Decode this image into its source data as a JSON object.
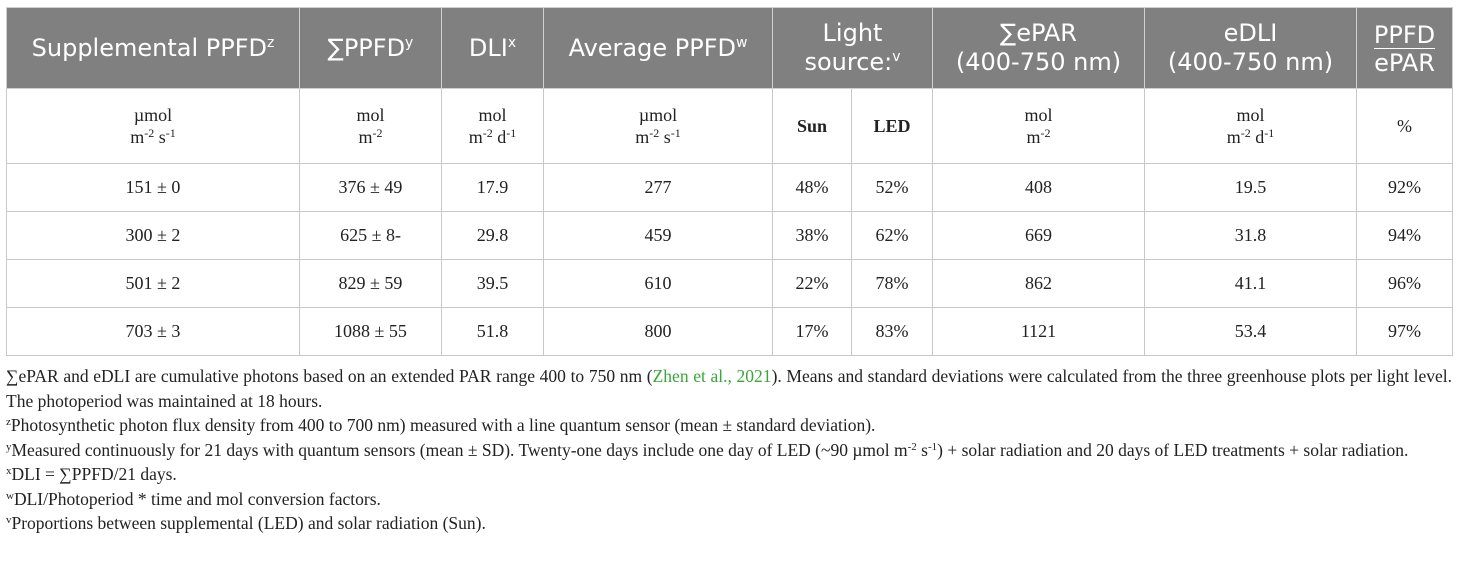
{
  "headers": {
    "supplemental_ppfd": "Supplemental PPFD",
    "supplemental_ppfd_sup": "z",
    "sum_ppfd": "∑PPFD",
    "sum_ppfd_sup": "y",
    "dli": "DLI",
    "dli_sup": "x",
    "avg_ppfd": "Average PPFD",
    "avg_ppfd_sup": "w",
    "light_source_1": "Light",
    "light_source_2": "source:",
    "light_source_sup": "v",
    "sum_epar_1": "∑ePAR",
    "sum_epar_2": "(400-750 nm)",
    "edli_1": "eDLI",
    "edli_2": "(400-750 nm)",
    "ratio_top": "PPFD",
    "ratio_bottom": "ePAR"
  },
  "units": {
    "supplemental_ppfd": {
      "l1": "µmol",
      "a": "m",
      "a_sup": "-2",
      "b": " s",
      "b_sup": "-1"
    },
    "sum_ppfd": {
      "l1": "mol",
      "a": "m",
      "a_sup": "-2"
    },
    "dli": {
      "l1": "mol",
      "a": "m",
      "a_sup": "-2",
      "b": " d",
      "b_sup": "-1"
    },
    "avg_ppfd": {
      "l1": "µmol",
      "a": "m",
      "a_sup": "-2",
      "b": " s",
      "b_sup": "-1"
    },
    "sun": "Sun",
    "led": "LED",
    "sum_epar": {
      "l1": "mol",
      "a": "m",
      "a_sup": "-2"
    },
    "edli": {
      "l1": "mol",
      "a": "m",
      "a_sup": "-2",
      "b": " d",
      "b_sup": "-1"
    },
    "ratio": "%"
  },
  "rows": [
    {
      "supp": "151 ± 0",
      "sum": "376 ± 49",
      "dli": "17.9",
      "avg": "277",
      "sun": "48%",
      "led": "52%",
      "epar": "408",
      "edli": "19.5",
      "ratio": "92%"
    },
    {
      "supp": "300 ± 2",
      "sum": "625 ± 8-",
      "dli": "29.8",
      "avg": "459",
      "sun": "38%",
      "led": "62%",
      "epar": "669",
      "edli": "31.8",
      "ratio": "94%"
    },
    {
      "supp": "501 ± 2",
      "sum": "829 ± 59",
      "dli": "39.5",
      "avg": "610",
      "sun": "22%",
      "led": "78%",
      "epar": "862",
      "edli": "41.1",
      "ratio": "96%"
    },
    {
      "supp": "703 ± 3",
      "sum": "1088 ± 55",
      "dli": "51.8",
      "avg": "800",
      "sun": "17%",
      "led": "83%",
      "epar": "1121",
      "edli": "53.4",
      "ratio": "97%"
    }
  ],
  "notes": {
    "n1_a": "∑ePAR and eDLI are cumulative photons based on an extended PAR range 400 to 750 nm (",
    "n1_cite": "Zhen et al., 2021",
    "n1_b": "). Means and standard deviations were calculated from the three greenhouse plots per light level. The photoperiod was maintained at 18 hours.",
    "z_sup": "z",
    "z_text": "Photosynthetic photon flux density from 400 to 700 nm) measured with a line quantum sensor (mean ± standard deviation).",
    "y_sup": "y",
    "y_text_a": "Measured continuously for 21 days with quantum sensors (mean ± SD). Twenty-one days include one day of LED (~90 µmol m",
    "y_sup2": "-2",
    "y_text_b": " s",
    "y_sup3": "-1",
    "y_text_c": ") + solar radiation and 20 days of LED treatments + solar radiation.",
    "x_sup": "x",
    "x_text": "DLI = ∑PPFD/21 days.",
    "w_sup": "w",
    "w_text": "DLI/Photoperiod * time and mol conversion factors.",
    "v_sup": "v",
    "v_text": "Proportions between supplemental (LED) and solar radiation (Sun)."
  }
}
